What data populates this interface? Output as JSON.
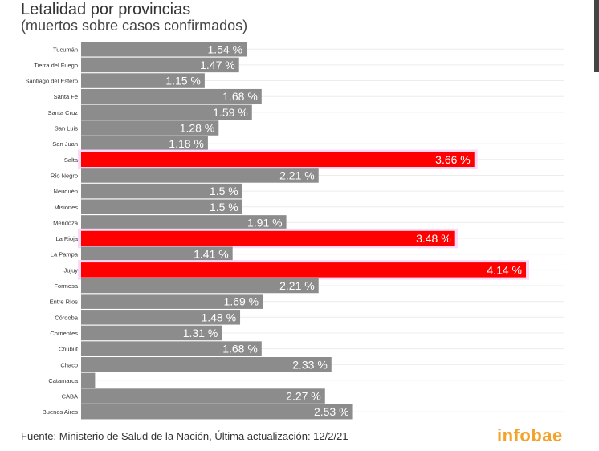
{
  "chart_data": {
    "type": "bar",
    "orientation": "horizontal",
    "title": "Letalidad por provincias",
    "subtitle": "(muertos sobre casos confirmados)",
    "categories": [
      "Tucumán",
      "Tierra del Fuego",
      "Santiago del Estero",
      "Santa Fe",
      "Santa Cruz",
      "San Luis",
      "San Juan",
      "Salta",
      "Río Negro",
      "Neuquén",
      "Misiones",
      "Mendoza",
      "La Rioja",
      "La Pampa",
      "Jujuy",
      "Formosa",
      "Entre Ríos",
      "Córdoba",
      "Corrientes",
      "Chubut",
      "Chaco",
      "Catamarca",
      "CABA",
      "Buenos Aires"
    ],
    "values": [
      1.54,
      1.47,
      1.15,
      1.68,
      1.59,
      1.28,
      1.18,
      3.66,
      2.21,
      1.5,
      1.5,
      1.91,
      3.48,
      1.41,
      4.14,
      2.21,
      1.69,
      1.48,
      1.31,
      1.68,
      2.33,
      0.13,
      2.27,
      2.53
    ],
    "labels": [
      "1.54 %",
      "1.47 %",
      "1.15 %",
      "1.68 %",
      "1.59 %",
      "1.28 %",
      "1.18 %",
      "3.66 %",
      "2.21 %",
      "1.5 %",
      "1.5 %",
      "1.91 %",
      "3.48 %",
      "1.41 %",
      "4.14 %",
      "2.21 %",
      "1.69 %",
      "1.48 %",
      "1.31 %",
      "1.68 %",
      "2.33 %",
      "",
      "2.27 %",
      "2.53 %"
    ],
    "highlighted": [
      "Salta",
      "La Rioja",
      "Jujuy"
    ],
    "unit": "%",
    "xlim": [
      0,
      4.45
    ],
    "grid": true,
    "colors": {
      "default": "#8c8c8c",
      "highlight": "#ff0000"
    }
  },
  "footer": {
    "source": "Fuente: Ministerio de Salud de la Nación, Última actualización: 12/2/21",
    "logo": "infobae"
  }
}
